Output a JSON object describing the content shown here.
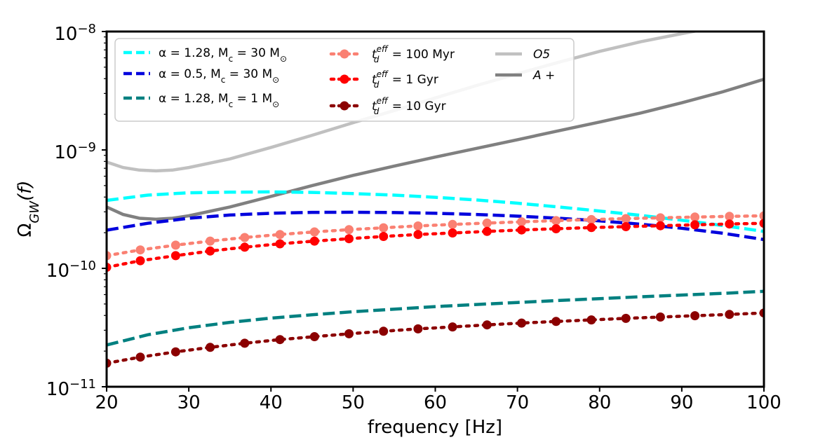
{
  "chart_data": {
    "type": "line",
    "xlabel": "frequency [Hz]",
    "ylabel": "Ω_GW(f)",
    "xlim": [
      20,
      100
    ],
    "ylim_log10": [
      -11,
      -8
    ],
    "yscale": "log",
    "x_ticks": [
      20,
      30,
      40,
      50,
      60,
      70,
      80,
      90,
      100
    ],
    "y_ticks": [
      {
        "exp": -11,
        "base": "10",
        "sup": "−11"
      },
      {
        "exp": -9,
        "base": "10",
        "sup": "−9"
      },
      {
        "exp": -10,
        "base": "10",
        "sup": "−10"
      },
      {
        "exp": -8,
        "base": "10",
        "sup": "−8"
      }
    ],
    "series": [
      {
        "id": "s1",
        "name": "α = 1.28, M_c = 30 M⊙",
        "style": "dashed",
        "color": "#00ffff",
        "marker": false,
        "x": [
          20,
          25,
          30,
          35,
          40,
          45,
          50,
          55,
          60,
          65,
          70,
          75,
          80,
          85,
          90,
          95,
          100
        ],
        "y": [
          3.75e-10,
          4.15e-10,
          4.35e-10,
          4.4e-10,
          4.42e-10,
          4.38e-10,
          4.28e-10,
          4.15e-10,
          3.98e-10,
          3.78e-10,
          3.55e-10,
          3.3e-10,
          3.05e-10,
          2.8e-10,
          2.55e-10,
          2.3e-10,
          2.05e-10
        ]
      },
      {
        "id": "s2",
        "name": "α = 0.5, M_c = 30 M⊙",
        "style": "dashed",
        "color": "#0000dd",
        "marker": false,
        "x": [
          20,
          25,
          30,
          35,
          40,
          45,
          50,
          55,
          60,
          65,
          70,
          75,
          80,
          85,
          90,
          95,
          100
        ],
        "y": [
          2.1e-10,
          2.4e-10,
          2.65e-10,
          2.82e-10,
          2.92e-10,
          2.97e-10,
          2.98e-10,
          2.96e-10,
          2.92e-10,
          2.85e-10,
          2.76e-10,
          2.65e-10,
          2.52e-10,
          2.36e-10,
          2.18e-10,
          1.98e-10,
          1.75e-10
        ]
      },
      {
        "id": "s3",
        "name": "α = 1.28, M_c = 1 M⊙",
        "style": "dashed",
        "color": "#008080",
        "marker": false,
        "x": [
          20,
          25,
          30,
          35,
          40,
          45,
          50,
          55,
          60,
          65,
          70,
          75,
          80,
          85,
          90,
          95,
          100
        ],
        "y": [
          2.25e-11,
          2.75e-11,
          3.15e-11,
          3.5e-11,
          3.8e-11,
          4.05e-11,
          4.3e-11,
          4.52e-11,
          4.75e-11,
          4.95e-11,
          5.15e-11,
          5.35e-11,
          5.55e-11,
          5.75e-11,
          5.95e-11,
          6.15e-11,
          6.4e-11
        ]
      },
      {
        "id": "s4",
        "name": "t_d^eff = 100 Myr",
        "style": "dotted",
        "color": "#fa8072",
        "marker": true,
        "x": [
          20,
          24.1,
          28.4,
          32.6,
          36.8,
          41.1,
          45.3,
          49.5,
          53.7,
          57.9,
          62.1,
          66.3,
          70.5,
          74.7,
          79.0,
          83.2,
          87.4,
          91.6,
          95.8,
          100
        ],
        "y": [
          1.28e-10,
          1.43e-10,
          1.57e-10,
          1.7e-10,
          1.82e-10,
          1.93e-10,
          2.03e-10,
          2.12e-10,
          2.2e-10,
          2.28e-10,
          2.35e-10,
          2.41e-10,
          2.47e-10,
          2.53e-10,
          2.58e-10,
          2.63e-10,
          2.67e-10,
          2.71e-10,
          2.75e-10,
          2.78e-10
        ]
      },
      {
        "id": "s5",
        "name": "t_d^eff = 1 Gyr",
        "style": "dotted",
        "color": "#ff0000",
        "marker": true,
        "x": [
          20,
          24.1,
          28.4,
          32.6,
          36.8,
          41.1,
          45.3,
          49.5,
          53.7,
          57.9,
          62.1,
          66.3,
          70.5,
          74.7,
          79.0,
          83.2,
          87.4,
          91.6,
          95.8,
          100
        ],
        "y": [
          1.02e-10,
          1.16e-10,
          1.28e-10,
          1.4e-10,
          1.51e-10,
          1.61e-10,
          1.7e-10,
          1.78e-10,
          1.86e-10,
          1.93e-10,
          1.99e-10,
          2.05e-10,
          2.11e-10,
          2.16e-10,
          2.21e-10,
          2.25e-10,
          2.29e-10,
          2.33e-10,
          2.37e-10,
          2.4e-10
        ]
      },
      {
        "id": "s6",
        "name": "t_d^eff = 10 Gyr",
        "style": "dotted",
        "color": "#8b0000",
        "marker": true,
        "x": [
          20,
          24.1,
          28.4,
          32.6,
          36.8,
          41.1,
          45.3,
          49.5,
          53.7,
          57.9,
          62.1,
          66.3,
          70.5,
          74.7,
          79.0,
          83.2,
          87.4,
          91.6,
          95.8,
          100
        ],
        "y": [
          1.58e-11,
          1.78e-11,
          1.97e-11,
          2.15e-11,
          2.33e-11,
          2.5e-11,
          2.65e-11,
          2.8e-11,
          2.94e-11,
          3.08e-11,
          3.2e-11,
          3.33e-11,
          3.45e-11,
          3.56e-11,
          3.67e-11,
          3.78e-11,
          3.88e-11,
          3.98e-11,
          4.08e-11,
          4.2e-11
        ]
      },
      {
        "id": "s7",
        "name": "O5",
        "style": "solid",
        "color": "#c0c0c0",
        "marker": false,
        "x": [
          20,
          22,
          24,
          26,
          28,
          30,
          35,
          40,
          45,
          50,
          55,
          60,
          65,
          70,
          75,
          80,
          85,
          90,
          92
        ],
        "y": [
          7.9e-10,
          7.1e-10,
          6.75e-10,
          6.65e-10,
          6.75e-10,
          7.1e-10,
          8.4e-10,
          1.05e-09,
          1.33e-09,
          1.7e-09,
          2.15e-09,
          2.75e-09,
          3.5e-09,
          4.4e-09,
          5.5e-09,
          6.8e-09,
          8.2e-09,
          9.6e-09,
          1.02e-08
        ]
      },
      {
        "id": "s8",
        "name": "A +",
        "style": "solid",
        "color": "#808080",
        "marker": false,
        "x": [
          20,
          22,
          24,
          26,
          28,
          30,
          35,
          40,
          45,
          50,
          55,
          60,
          65,
          70,
          75,
          80,
          85,
          90,
          95,
          100
        ],
        "y": [
          3.3e-10,
          2.85e-10,
          2.65e-10,
          2.6e-10,
          2.65e-10,
          2.78e-10,
          3.3e-10,
          4.05e-10,
          5e-10,
          6.1e-10,
          7.3e-10,
          8.7e-10,
          1.03e-09,
          1.22e-09,
          1.45e-09,
          1.72e-09,
          2.05e-09,
          2.5e-09,
          3.1e-09,
          3.95e-09
        ]
      }
    ],
    "legend": {
      "col1": [
        {
          "series": "s1",
          "label": "α = 1.28, M",
          "sub": "c",
          "rest": " = 30 M",
          "sun": "⊙"
        },
        {
          "series": "s2",
          "label": "α = 0.5, M",
          "sub": "c",
          "rest": " = 30 M",
          "sun": "⊙"
        },
        {
          "series": "s3",
          "label": "α = 1.28, M",
          "sub": "c",
          "rest": " = 1 M",
          "sun": "⊙"
        }
      ],
      "col2": [
        {
          "series": "s4",
          "t": "t",
          "sup": "eff",
          "sub": "d",
          "rest": " = 100 Myr"
        },
        {
          "series": "s5",
          "t": "t",
          "sup": "eff",
          "sub": "d",
          "rest": " = 1 Gyr"
        },
        {
          "series": "s6",
          "t": "t",
          "sup": "eff",
          "sub": "d",
          "rest": " = 10 Gyr"
        }
      ],
      "col3": [
        {
          "series": "s7",
          "label": "O5"
        },
        {
          "series": "s8",
          "label": "A +"
        }
      ]
    }
  }
}
